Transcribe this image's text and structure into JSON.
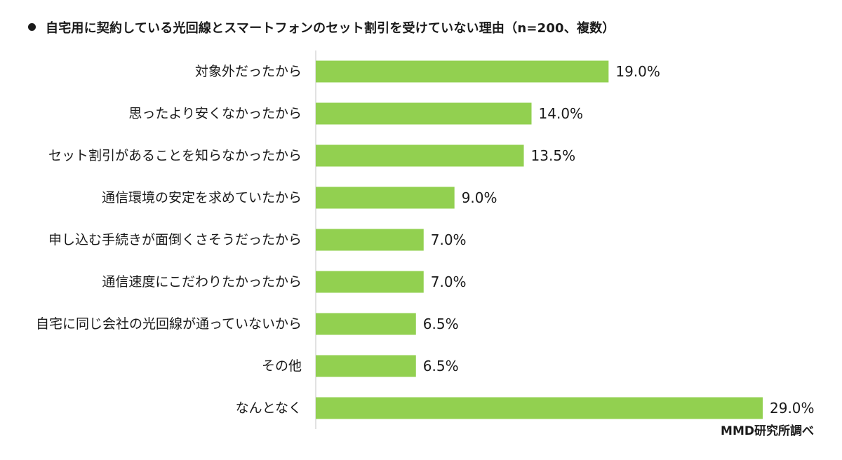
{
  "chart_data": {
    "type": "bar",
    "orientation": "horizontal",
    "title": "自宅用に契約している光回線とスマートフォンのセット割引を受けていない理由（n=200、複数）",
    "categories": [
      "対象外だったから",
      "思ったより安くなかったから",
      "セット割引があることを知らなかったから",
      "通信環境の安定を求めていたから",
      "申し込む手続きが面倒くさそうだったから",
      "通信速度にこだわりたかったから",
      "自宅に同じ会社の光回線が通っていないから",
      "その他",
      "なんとなく"
    ],
    "values": [
      19.0,
      14.0,
      13.5,
      9.0,
      7.0,
      7.0,
      6.5,
      6.5,
      29.0
    ],
    "value_labels": [
      "19.0%",
      "14.0%",
      "13.5%",
      "9.0%",
      "7.0%",
      "7.0%",
      "6.5%",
      "6.5%",
      "29.0%"
    ],
    "unit": "%",
    "xlim": [
      0,
      30
    ],
    "grid": false,
    "legend": "none",
    "bar_color": "#92d050",
    "axis_color": "#d9d9d9",
    "source": "MMD研究所調べ"
  }
}
